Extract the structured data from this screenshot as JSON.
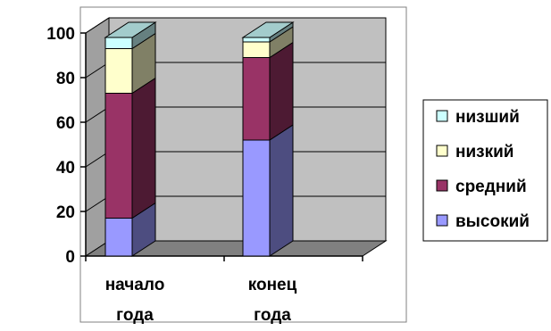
{
  "chart_data": {
    "type": "bar",
    "stacked": true,
    "three_d": true,
    "categories": [
      [
        "начало",
        "года"
      ],
      [
        "конец",
        "года"
      ]
    ],
    "series": [
      {
        "name": "высокий",
        "values": [
          17,
          52
        ],
        "color": "#9999ff"
      },
      {
        "name": "средний",
        "values": [
          56,
          37
        ],
        "color": "#993366"
      },
      {
        "name": "низкий",
        "values": [
          20,
          7
        ],
        "color": "#ffffcc"
      },
      {
        "name": "низший",
        "values": [
          5,
          2
        ],
        "color": "#ccffff"
      }
    ],
    "ylim": [
      0,
      100
    ],
    "yticks": [
      "0",
      "20",
      "40",
      "60",
      "80",
      "100"
    ],
    "grid": true,
    "legend": "right",
    "legend_order": [
      "низший",
      "низкий",
      "средний",
      "высокий"
    ],
    "plot_background": "#c0c0c0",
    "floor_color": "#808080"
  }
}
